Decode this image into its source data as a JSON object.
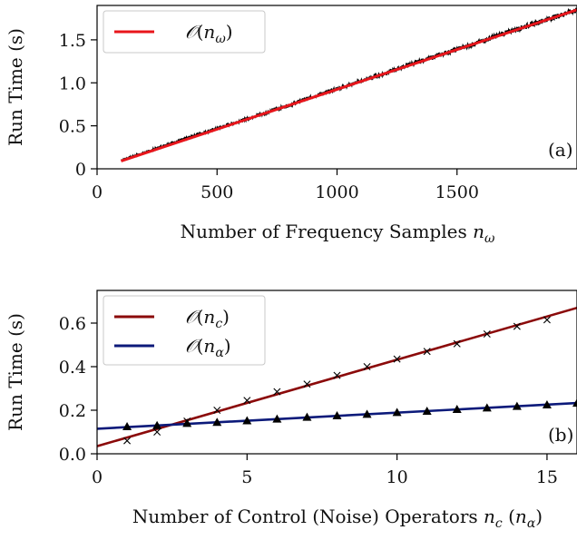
{
  "chart_data": [
    {
      "type": "line",
      "panel_tag": "(a)",
      "xlabel": "Number of Frequency Samples n_ω",
      "ylabel": "Run Time (s)",
      "xlim": [
        0,
        2000
      ],
      "ylim": [
        0,
        1.9
      ],
      "xticks": [
        0,
        500,
        1000,
        1500
      ],
      "yticks": [
        0,
        0.5,
        1.0,
        1.5
      ],
      "xtick_labels": [
        "0",
        "500",
        "1000",
        "1500"
      ],
      "ytick_labels": [
        "0",
        "0.5",
        "1.0",
        "1.5"
      ],
      "legend_position": "top-left",
      "series": [
        {
          "name": "𝒪(n_ω)",
          "kind": "measured-noisy",
          "color": "#000000",
          "x": [
            100,
            200,
            300,
            400,
            500,
            600,
            700,
            800,
            900,
            1000,
            1100,
            1200,
            1300,
            1400,
            1500,
            1600,
            1700,
            1800,
            1900,
            2000
          ],
          "y": [
            0.1,
            0.19,
            0.29,
            0.38,
            0.47,
            0.56,
            0.65,
            0.74,
            0.84,
            0.93,
            1.02,
            1.11,
            1.21,
            1.3,
            1.39,
            1.48,
            1.58,
            1.67,
            1.76,
            1.85
          ]
        },
        {
          "name": "𝒪(n_ω)",
          "kind": "fit",
          "color": "#e8151b",
          "x": [
            100,
            2000
          ],
          "y": [
            0.09,
            1.85
          ]
        }
      ]
    },
    {
      "type": "line",
      "panel_tag": "(b)",
      "xlabel": "Number of Control (Noise) Operators n_c (n_α)",
      "ylabel": "Run Time (s)",
      "xlim": [
        0,
        16
      ],
      "ylim": [
        0,
        0.75
      ],
      "xticks": [
        0,
        5,
        10,
        15
      ],
      "yticks": [
        0.0,
        0.2,
        0.4,
        0.6
      ],
      "xtick_labels": [
        "0",
        "5",
        "10",
        "15"
      ],
      "ytick_labels": [
        "0.0",
        "0.2",
        "0.4",
        "0.6"
      ],
      "legend_position": "top-left",
      "series": [
        {
          "name": "𝒪(n_c)",
          "kind": "fit",
          "color": "#8b0a0a",
          "x": [
            0,
            16
          ],
          "y": [
            0.035,
            0.67
          ]
        },
        {
          "name": "𝒪(n_α)",
          "kind": "fit",
          "color": "#0c1a7a",
          "x": [
            0,
            16
          ],
          "y": [
            0.115,
            0.233
          ]
        },
        {
          "name": "𝒪(n_c)",
          "kind": "measured-x",
          "color": "#000000",
          "x": [
            1,
            2,
            3,
            4,
            5,
            6,
            7,
            8,
            9,
            10,
            11,
            12,
            13,
            14,
            15
          ],
          "y": [
            0.06,
            0.1,
            0.15,
            0.2,
            0.245,
            0.285,
            0.32,
            0.36,
            0.4,
            0.435,
            0.47,
            0.505,
            0.55,
            0.585,
            0.615
          ]
        },
        {
          "name": "𝒪(n_α)",
          "kind": "measured-triangle",
          "color": "#000000",
          "x": [
            1,
            2,
            3,
            4,
            5,
            6,
            7,
            8,
            9,
            10,
            11,
            12,
            13,
            14,
            15,
            16
          ],
          "y": [
            0.125,
            0.13,
            0.14,
            0.145,
            0.152,
            0.16,
            0.168,
            0.175,
            0.182,
            0.19,
            0.196,
            0.204,
            0.211,
            0.218,
            0.225,
            0.233
          ]
        }
      ]
    }
  ]
}
